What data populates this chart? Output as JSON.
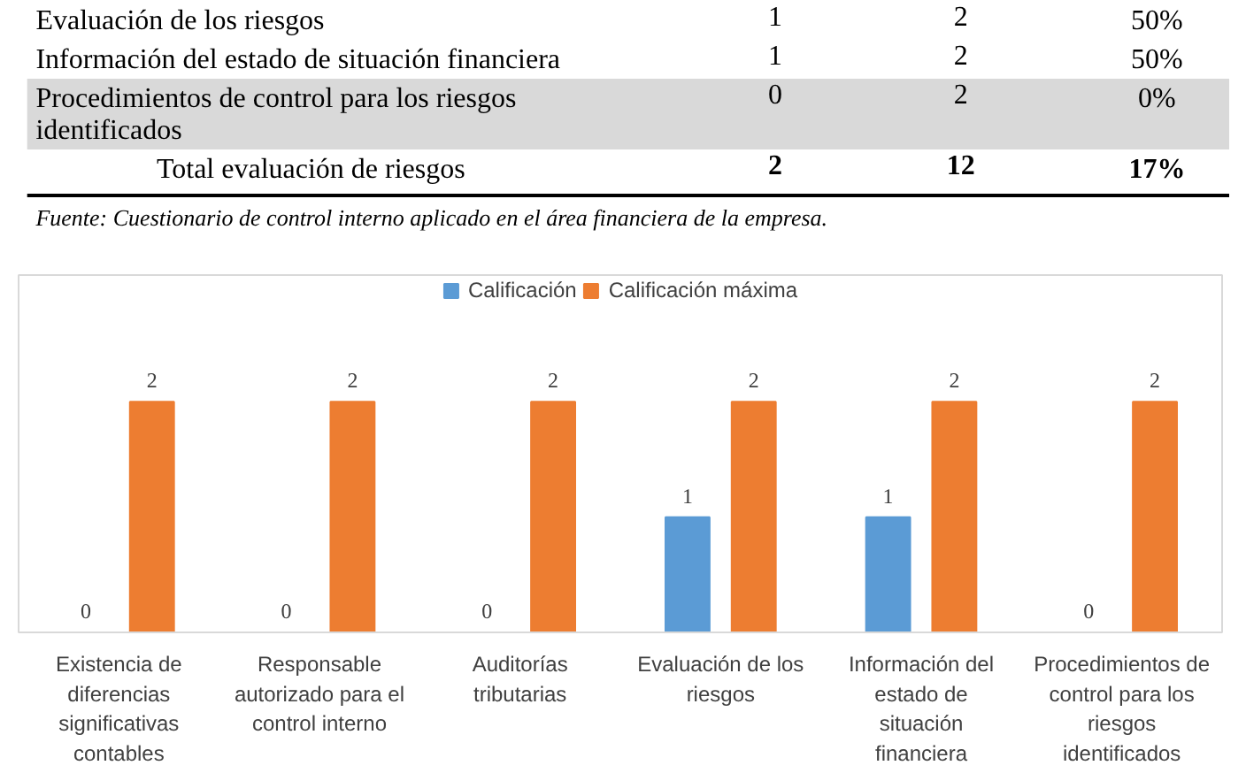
{
  "chart_data": [
    {
      "type": "other",
      "annotations": [
        "Evaluación de los riesgos",
        "1",
        "2",
        "50%",
        "Información del estado de situación financiera",
        "1",
        "2",
        "50%",
        "Procedimientos de control para los riesgos identificados",
        "0",
        "2",
        "0%",
        "Total evaluación de riesgos",
        "2",
        "12",
        "17%",
        "Fuente: Cuestionario de control interno aplicado en el área financiera de la empresa."
      ]
    },
    {
      "type": "bar",
      "categories": [
        "Existencia de diferencias significativas contables",
        "Responsable autorizado para el control interno",
        "Auditorías tributarias",
        "Evaluación de los riesgos",
        "Información del estado de situación financiera",
        "Procedimientos de control para los riesgos identificados"
      ],
      "series": [
        {
          "name": "Calificación",
          "color": "#5b9bd5",
          "values": [
            0,
            0,
            0,
            1,
            1,
            0
          ]
        },
        {
          "name": "Calificación máxima",
          "color": "#ed7d31",
          "values": [
            2,
            2,
            2,
            2,
            2,
            2
          ]
        }
      ],
      "data_labels": true,
      "legend": "top",
      "grid": false
    }
  ]
}
